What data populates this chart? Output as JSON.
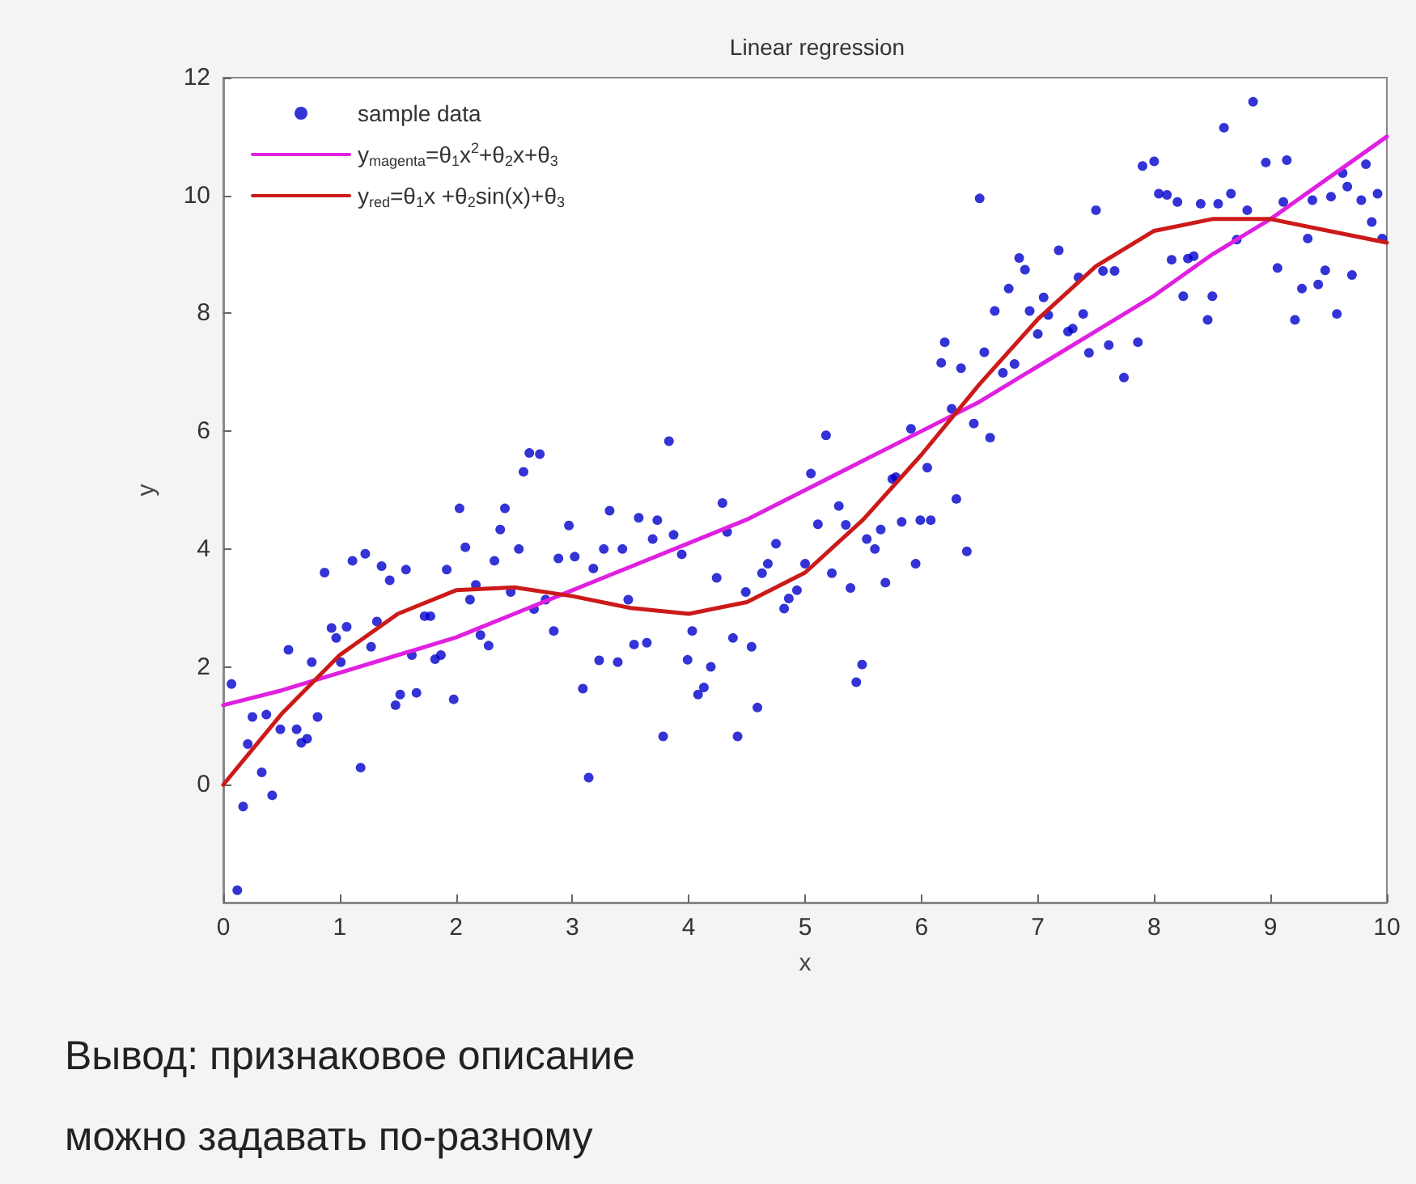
{
  "chart_data": {
    "type": "scatter",
    "title": "Linear regression",
    "xlabel": "x",
    "ylabel": "y",
    "xlim": [
      0,
      10
    ],
    "xticks": [
      0,
      1,
      2,
      3,
      4,
      5,
      6,
      7,
      8,
      9,
      10
    ],
    "ylim": [
      -2,
      12
    ],
    "yticks": [
      0,
      2,
      4,
      6,
      8,
      10,
      12
    ],
    "grid": false,
    "legend": "top left",
    "annotations": [
      "Вывод: признаковое описание можно задавать по-разному"
    ],
    "series": [
      {
        "name": "sample data",
        "marker": "circle",
        "color": "#0000cc",
        "x": [
          0.07,
          0.17,
          0.12,
          0.21,
          0.25,
          0.33,
          0.37,
          0.42,
          0.49,
          0.56,
          0.63,
          0.67,
          0.72,
          0.76,
          0.81,
          0.87,
          0.93,
          0.97,
          1.01,
          1.06,
          1.11,
          1.18,
          1.22,
          1.27,
          1.32,
          1.36,
          1.43,
          1.48,
          1.52,
          1.57,
          1.62,
          1.66,
          1.73,
          1.78,
          1.82,
          1.87,
          1.92,
          1.98,
          2.03,
          2.08,
          2.12,
          2.17,
          2.21,
          2.28,
          2.33,
          2.38,
          2.42,
          2.47,
          2.54,
          2.58,
          2.63,
          2.72,
          2.67,
          2.77,
          2.84,
          2.88,
          2.97,
          3.02,
          3.09,
          3.14,
          3.18,
          3.23,
          3.27,
          3.32,
          3.39,
          3.43,
          3.48,
          3.53,
          3.57,
          3.64,
          3.69,
          3.73,
          3.78,
          3.83,
          3.87,
          3.94,
          3.99,
          4.03,
          4.08,
          4.13,
          4.19,
          4.24,
          4.29,
          4.33,
          4.38,
          4.42,
          4.49,
          4.54,
          4.59,
          4.63,
          4.68,
          4.75,
          4.82,
          4.86,
          4.93,
          5.0,
          5.05,
          5.11,
          5.18,
          5.23,
          5.29,
          5.35,
          5.39,
          5.44,
          5.49,
          5.53,
          5.6,
          5.65,
          5.69,
          5.75,
          5.78,
          5.83,
          5.91,
          5.95,
          5.99,
          6.05,
          6.08,
          6.17,
          6.2,
          6.26,
          6.3,
          6.34,
          6.39,
          6.45,
          6.5,
          6.54,
          6.59,
          6.63,
          6.7,
          6.75,
          6.8,
          6.84,
          6.89,
          6.93,
          7.0,
          7.05,
          7.09,
          7.18,
          7.26,
          7.3,
          7.35,
          7.39,
          7.44,
          7.5,
          7.56,
          7.61,
          7.66,
          7.74,
          7.86,
          7.9,
          8.0,
          8.04,
          8.11,
          8.15,
          8.2,
          8.25,
          8.29,
          8.34,
          8.4,
          8.46,
          8.5,
          8.55,
          8.6,
          8.66,
          8.71,
          8.8,
          8.85,
          8.96,
          9.06,
          9.11,
          9.14,
          9.21,
          9.27,
          9.32,
          9.36,
          9.41,
          9.47,
          9.52,
          9.57,
          9.62,
          9.66,
          9.7,
          9.78,
          9.82,
          9.87,
          9.92,
          9.96
        ],
        "values": [
          1.71,
          -0.37,
          -1.79,
          0.69,
          1.15,
          0.21,
          1.19,
          -0.18,
          0.94,
          2.29,
          0.94,
          0.71,
          0.78,
          2.08,
          1.15,
          3.6,
          2.66,
          2.49,
          2.08,
          2.68,
          3.8,
          0.29,
          3.92,
          2.34,
          2.77,
          3.71,
          3.47,
          1.35,
          1.53,
          3.65,
          2.2,
          1.56,
          2.86,
          2.86,
          2.13,
          2.2,
          3.65,
          1.45,
          4.69,
          4.03,
          3.14,
          3.39,
          2.54,
          2.36,
          3.8,
          4.33,
          4.69,
          3.27,
          4.0,
          5.31,
          5.63,
          5.61,
          2.98,
          3.14,
          2.61,
          3.84,
          4.4,
          3.87,
          1.63,
          0.12,
          3.67,
          2.11,
          4.0,
          4.65,
          2.08,
          4.0,
          3.14,
          2.38,
          4.53,
          2.41,
          4.17,
          4.49,
          0.82,
          5.83,
          4.24,
          3.91,
          2.12,
          2.61,
          1.53,
          1.65,
          2.0,
          3.51,
          4.78,
          4.29,
          2.49,
          0.82,
          3.27,
          2.34,
          1.31,
          3.59,
          3.75,
          4.09,
          2.99,
          3.16,
          3.3,
          3.75,
          5.28,
          4.42,
          5.93,
          3.59,
          4.73,
          4.41,
          3.34,
          1.74,
          2.04,
          4.17,
          4.0,
          4.33,
          3.43,
          5.19,
          5.22,
          4.46,
          6.04,
          3.75,
          4.49,
          5.38,
          4.49,
          7.16,
          7.51,
          6.38,
          4.85,
          7.07,
          3.96,
          6.13,
          9.95,
          7.34,
          5.89,
          8.04,
          6.99,
          8.42,
          7.14,
          8.94,
          8.74,
          8.04,
          7.65,
          8.27,
          7.97,
          9.07,
          7.69,
          7.74,
          8.61,
          7.99,
          7.33,
          9.75,
          8.72,
          7.46,
          8.72,
          6.91,
          7.51,
          10.5,
          10.58,
          10.03,
          10.01,
          8.91,
          9.89,
          8.29,
          8.93,
          8.97,
          9.86,
          7.89,
          8.29,
          9.86,
          11.15,
          10.03,
          9.25,
          9.75,
          11.59,
          10.56,
          8.77,
          9.89,
          10.6,
          7.89,
          8.42,
          9.27,
          9.92,
          8.49,
          8.73,
          9.98,
          7.99,
          10.38,
          10.15,
          8.65,
          9.92,
          10.53,
          9.55,
          10.03,
          9.27
        ]
      },
      {
        "name": "y$_{magenta}$=θ$_{1}$x$^{2}$+θ$_{2}$x+θ$_{3}$",
        "type": "line",
        "marker": "none",
        "line_style": "solid",
        "color": "#e020e0",
        "x": [
          0,
          0.5,
          1,
          1.5,
          2,
          2.5,
          3,
          3.5,
          4,
          4.5,
          5,
          5.5,
          6,
          6.5,
          7,
          7.5,
          8,
          8.5,
          9,
          9.5,
          10
        ],
        "values": [
          1.35,
          1.6,
          1.9,
          2.2,
          2.5,
          2.9,
          3.3,
          3.7,
          4.1,
          4.5,
          5.0,
          5.5,
          6.0,
          6.5,
          7.1,
          7.7,
          8.3,
          9.0,
          9.6,
          10.3,
          11.0
        ]
      },
      {
        "name": "y$_{red}$=θ$_{1}$x +θ$_{2}$sin(x)+θ$_{3}$",
        "type": "line",
        "marker": "none",
        "line_style": "solid",
        "color": "#cc1a1a",
        "x": [
          0,
          0.5,
          1,
          1.5,
          2,
          2.5,
          3,
          3.5,
          4,
          4.5,
          5,
          5.5,
          6,
          6.5,
          7,
          7.5,
          8,
          8.5,
          9,
          9.5,
          10
        ],
        "values": [
          0,
          1.2,
          2.2,
          2.9,
          3.3,
          3.35,
          3.2,
          3.0,
          2.9,
          3.1,
          3.6,
          4.5,
          5.6,
          6.8,
          7.9,
          8.8,
          9.4,
          9.6,
          9.6,
          9.4,
          9.2
        ]
      }
    ]
  }
}
